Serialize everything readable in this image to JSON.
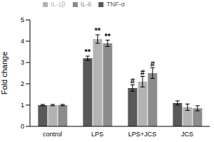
{
  "chart_data": {
    "type": "bar",
    "y_label": "Fold change",
    "categories": [
      "control",
      "LPS",
      "LPS+JCS",
      "JCS"
    ],
    "series": [
      {
        "name": "TNF-α",
        "color": "#595959",
        "values": [
          1.0,
          3.2,
          1.8,
          1.1
        ],
        "errors": [
          0.03,
          0.1,
          0.15,
          0.1
        ],
        "annotations": [
          null,
          "**",
          "#",
          null
        ]
      },
      {
        "name": "IL-1β",
        "color": "#b3b3b3",
        "values": [
          1.0,
          4.1,
          2.1,
          0.9
        ],
        "errors": [
          0.03,
          0.2,
          0.25,
          0.15
        ],
        "annotations": [
          null,
          "**",
          "#",
          null
        ]
      },
      {
        "name": "IL-6",
        "color": "#8c8c8c",
        "values": [
          1.0,
          3.9,
          2.5,
          0.85
        ],
        "errors": [
          0.03,
          0.15,
          0.25,
          0.12
        ],
        "annotations": [
          null,
          "**",
          "#",
          null
        ]
      }
    ],
    "ylim": [
      0,
      5
    ],
    "yticks": [
      0,
      1,
      2,
      3,
      4,
      5
    ],
    "grid": false,
    "legend": "top left"
  }
}
